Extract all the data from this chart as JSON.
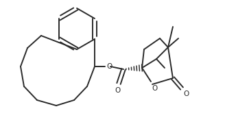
{
  "background_color": "#ffffff",
  "line_color": "#2a2a2a",
  "line_width": 1.4,
  "figsize": [
    3.28,
    1.94
  ],
  "dpi": 100,
  "xlim": [
    0,
    328
  ],
  "ylim": [
    0,
    194
  ]
}
